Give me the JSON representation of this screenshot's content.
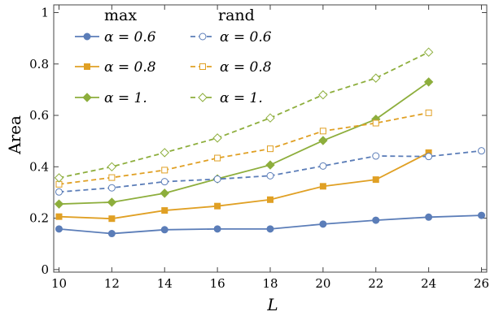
{
  "chart_data": {
    "type": "line",
    "title": "",
    "xlabel": "L",
    "ylabel": "Area",
    "xlim": [
      9.8,
      26.2
    ],
    "ylim": [
      -0.01,
      1.03
    ],
    "xticks": [
      10,
      12,
      14,
      16,
      18,
      20,
      22,
      24,
      26
    ],
    "yticks": [
      0,
      0.2,
      0.4,
      0.6,
      0.8,
      1
    ],
    "ytick_labels": [
      "0",
      "0.2",
      "0.4",
      "0.6",
      "0.8",
      "1"
    ],
    "grid": false,
    "legend_position": "top-left",
    "legend_headers": [
      "max",
      "rand"
    ],
    "series": [
      {
        "name": "α = 0.6",
        "group": "max",
        "color": "#5B7DB8",
        "marker": "circle",
        "filled": true,
        "dashed": false,
        "x": [
          10,
          12,
          14,
          16,
          18,
          20,
          22,
          24,
          26
        ],
        "values": [
          0.158,
          0.14,
          0.155,
          0.158,
          0.158,
          0.177,
          0.192,
          0.204,
          0.211
        ]
      },
      {
        "name": "α = 0.8",
        "group": "max",
        "color": "#E0A024",
        "marker": "square",
        "filled": true,
        "dashed": false,
        "x": [
          10,
          12,
          14,
          16,
          18,
          20,
          22,
          24
        ],
        "values": [
          0.206,
          0.198,
          0.23,
          0.247,
          0.272,
          0.324,
          0.35,
          0.455
        ]
      },
      {
        "name": "α = 1.",
        "group": "max",
        "color": "#8DAE3C",
        "marker": "diamond",
        "filled": true,
        "dashed": false,
        "x": [
          10,
          12,
          14,
          16,
          18,
          20,
          22,
          24
        ],
        "values": [
          0.255,
          0.262,
          0.297,
          0.353,
          0.407,
          0.502,
          0.585,
          0.73
        ]
      },
      {
        "name": "α = 0.6",
        "group": "rand",
        "color": "#5B7DB8",
        "marker": "circle",
        "filled": false,
        "dashed": true,
        "x": [
          10,
          12,
          14,
          16,
          18,
          20,
          22,
          24,
          26
        ],
        "values": [
          0.302,
          0.318,
          0.342,
          0.352,
          0.365,
          0.403,
          0.442,
          0.44,
          0.462
        ]
      },
      {
        "name": "α = 0.8",
        "group": "rand",
        "color": "#E0A024",
        "marker": "square",
        "filled": false,
        "dashed": true,
        "x": [
          10,
          12,
          14,
          16,
          18,
          20,
          22,
          24
        ],
        "values": [
          0.332,
          0.358,
          0.387,
          0.434,
          0.47,
          0.539,
          0.57,
          0.61
        ]
      },
      {
        "name": "α = 1.",
        "group": "rand",
        "color": "#8DAE3C",
        "marker": "diamond",
        "filled": false,
        "dashed": true,
        "x": [
          10,
          12,
          14,
          16,
          18,
          20,
          22,
          24
        ],
        "values": [
          0.357,
          0.4,
          0.455,
          0.512,
          0.59,
          0.68,
          0.745,
          0.846
        ]
      }
    ]
  }
}
